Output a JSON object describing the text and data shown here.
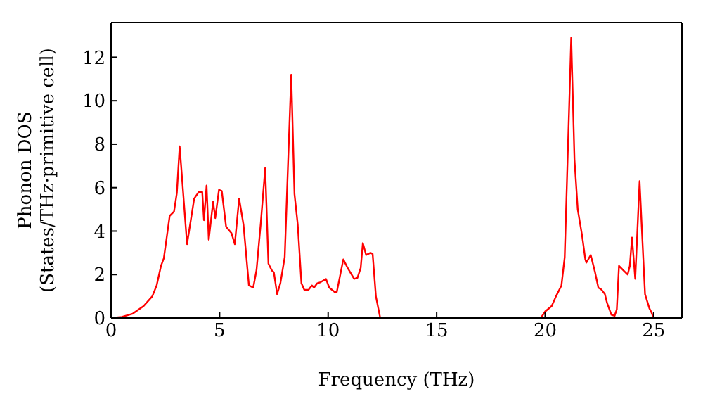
{
  "chart_data": {
    "type": "line",
    "xlabel": "Frequency (THz)",
    "ylabel": "Phonon DOS\n(States/THz·primitive cell)",
    "xlim": [
      0,
      26.3
    ],
    "xticks": [
      0,
      5,
      10,
      15,
      20,
      25
    ],
    "ylim": [
      0,
      13.6
    ],
    "yticks": [
      0,
      2,
      4,
      6,
      8,
      10,
      12
    ],
    "marker": "none",
    "line_style": "solid",
    "series": [
      {
        "color": "#ff0000",
        "x": [
          0,
          0.5,
          1,
          1.5,
          1.9,
          2.1,
          2.3,
          2.43,
          2.7,
          2.9,
          3.03,
          3.16,
          3.5,
          3.83,
          4.04,
          4.2,
          4.28,
          4.4,
          4.5,
          4.7,
          4.8,
          4.97,
          5.1,
          5.3,
          5.55,
          5.7,
          5.9,
          6.1,
          6.35,
          6.55,
          6.7,
          6.9,
          7.1,
          7.25,
          7.4,
          7.5,
          7.65,
          7.8,
          8.0,
          8.3,
          8.45,
          8.6,
          8.77,
          8.9,
          9.1,
          9.25,
          9.35,
          9.5,
          9.65,
          9.9,
          10.05,
          10.3,
          10.4,
          10.7,
          10.9,
          11.2,
          11.35,
          11.5,
          11.6,
          11.75,
          11.95,
          12.05,
          12.2,
          12.4,
          19.8,
          20.0,
          20.3,
          20.5,
          20.75,
          20.9,
          21.2,
          21.35,
          21.5,
          21.7,
          21.85,
          21.9,
          22.1,
          22.3,
          22.45,
          22.6,
          22.75,
          22.85,
          23.05,
          23.2,
          23.3,
          23.4,
          23.6,
          23.8,
          23.9,
          24.0,
          24.15,
          24.35,
          24.45,
          24.6,
          24.8,
          24.9,
          25.0,
          26.1
        ],
        "values": [
          0,
          0.05,
          0.2,
          0.55,
          1.0,
          1.5,
          2.4,
          2.75,
          4.7,
          4.9,
          5.75,
          7.9,
          3.4,
          5.5,
          5.8,
          5.8,
          4.5,
          6.1,
          3.6,
          5.35,
          4.6,
          5.9,
          5.85,
          4.2,
          3.9,
          3.4,
          5.5,
          4.3,
          1.5,
          1.4,
          2.2,
          4.4,
          6.9,
          2.5,
          2.2,
          2.1,
          1.1,
          1.6,
          2.8,
          11.2,
          5.7,
          4.3,
          1.6,
          1.3,
          1.3,
          1.5,
          1.4,
          1.6,
          1.65,
          1.8,
          1.4,
          1.2,
          1.2,
          2.7,
          2.3,
          1.8,
          1.85,
          2.3,
          3.45,
          2.9,
          3.0,
          2.95,
          1.0,
          0,
          0,
          0.3,
          0.55,
          1.0,
          1.5,
          2.8,
          12.9,
          7.3,
          5.0,
          3.8,
          2.7,
          2.55,
          2.9,
          2.1,
          1.4,
          1.3,
          1.1,
          0.7,
          0.15,
          0.1,
          0.4,
          2.4,
          2.2,
          2.0,
          2.4,
          3.7,
          1.8,
          6.3,
          4.2,
          1.1,
          0.45,
          0.25,
          0,
          0
        ]
      }
    ]
  }
}
